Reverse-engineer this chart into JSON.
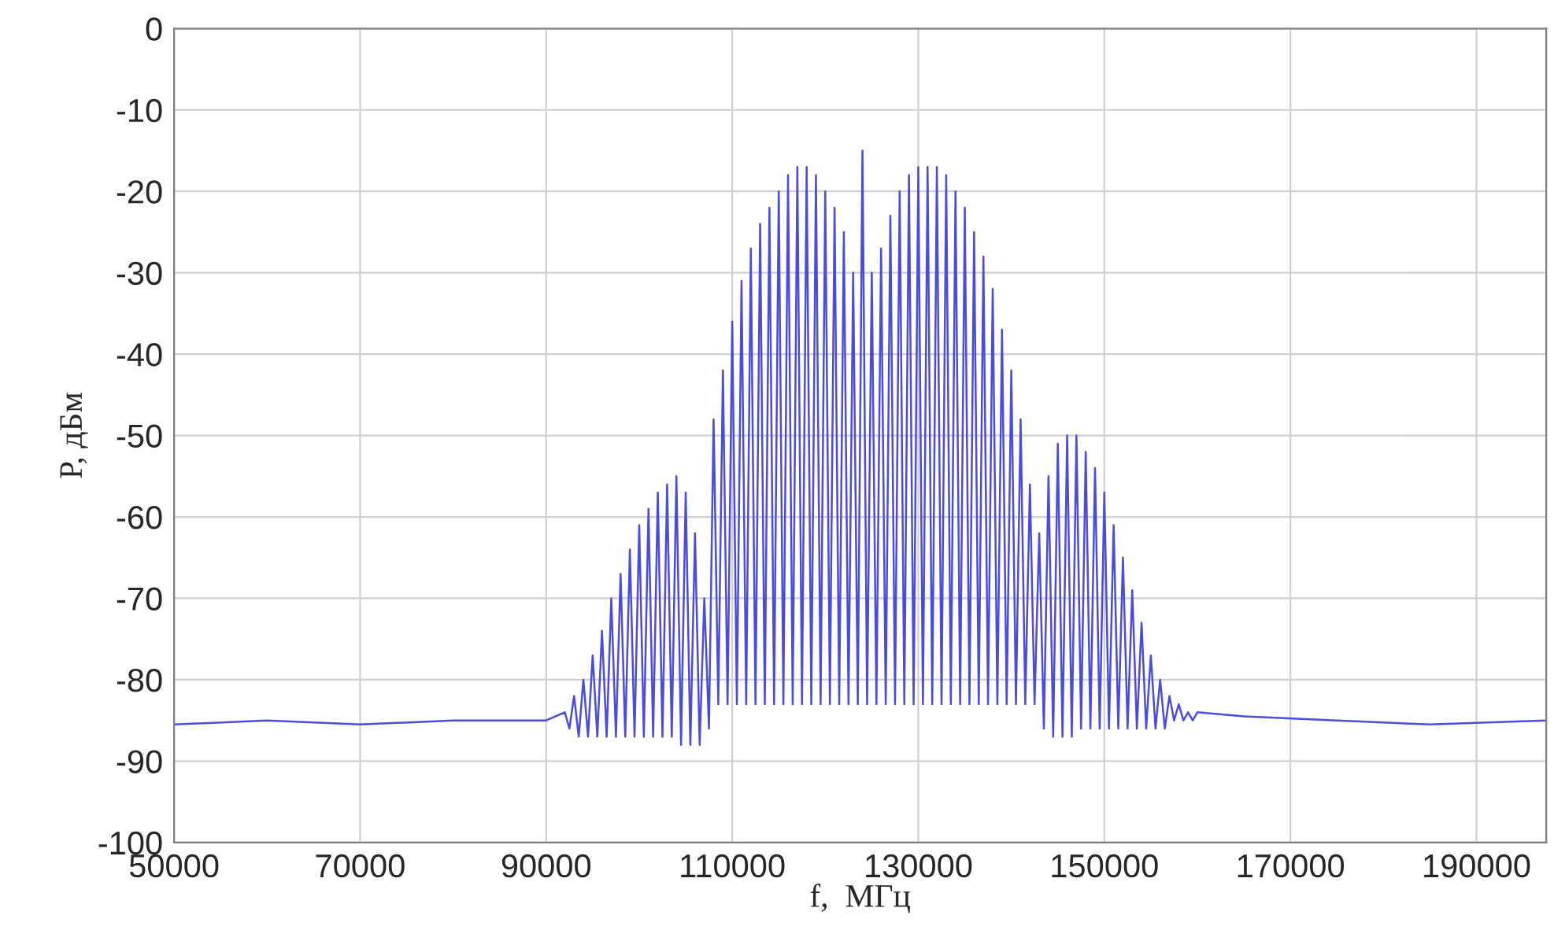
{
  "chart_data": {
    "type": "line",
    "xlabel": "f,  МГц",
    "ylabel": "P, дБм",
    "xlim": [
      50000,
      197500
    ],
    "ylim": [
      -100,
      0
    ],
    "xticks": [
      50000,
      70000,
      90000,
      110000,
      130000,
      150000,
      170000,
      190000
    ],
    "yticks": [
      -100,
      -90,
      -80,
      -70,
      -60,
      -50,
      -40,
      -30,
      -20,
      -10,
      0
    ],
    "grid": true,
    "marker": "none",
    "line_style": "solid",
    "series": [
      {
        "color": "#4b4bdc",
        "x": [
          50000,
          60000,
          70000,
          80000,
          90000,
          92000,
          92500,
          93000,
          93500,
          94000,
          94500,
          95000,
          95500,
          96000,
          96500,
          97000,
          97500,
          98000,
          98500,
          99000,
          99500,
          100000,
          100500,
          101000,
          101500,
          102000,
          102500,
          103000,
          103500,
          104000,
          104500,
          105000,
          105500,
          106000,
          106500,
          107000,
          107500,
          108000,
          108500,
          109000,
          109500,
          110000,
          110500,
          111000,
          111500,
          112000,
          112500,
          113000,
          113500,
          114000,
          114500,
          115000,
          115500,
          116000,
          116500,
          117000,
          117500,
          118000,
          118500,
          119000,
          119500,
          120000,
          120500,
          121000,
          121500,
          122000,
          122500,
          123000,
          123500,
          124000,
          124500,
          125000,
          125500,
          126000,
          126500,
          127000,
          127500,
          128000,
          128500,
          129000,
          129500,
          130000,
          130500,
          131000,
          131500,
          132000,
          132500,
          133000,
          133500,
          134000,
          134500,
          135000,
          135500,
          136000,
          136500,
          137000,
          137500,
          138000,
          138500,
          139000,
          139500,
          140000,
          140500,
          141000,
          141500,
          142000,
          142500,
          143000,
          143500,
          144000,
          144500,
          145000,
          145500,
          146000,
          146500,
          147000,
          147500,
          148000,
          148500,
          149000,
          149500,
          150000,
          150500,
          151000,
          151500,
          152000,
          152500,
          153000,
          153500,
          154000,
          154500,
          155000,
          155500,
          156000,
          156500,
          157000,
          157500,
          158000,
          158500,
          159000,
          159500,
          160000,
          165000,
          175000,
          185000,
          197500
        ],
        "values": [
          -85.5,
          -85,
          -85.5,
          -85,
          -85,
          -84,
          -86,
          -82,
          -87,
          -80,
          -87,
          -77,
          -87,
          -74,
          -87,
          -70,
          -87,
          -67,
          -87,
          -64,
          -87,
          -61,
          -87,
          -59,
          -87,
          -57,
          -87,
          -56,
          -87,
          -55,
          -88,
          -57,
          -88,
          -62,
          -88,
          -70,
          -86,
          -48,
          -83,
          -42,
          -83,
          -36,
          -83,
          -31,
          -83,
          -27,
          -83,
          -24,
          -83,
          -22,
          -83,
          -20,
          -83,
          -18,
          -83,
          -17,
          -83,
          -17,
          -83,
          -18,
          -83,
          -20,
          -83,
          -22,
          -83,
          -25,
          -83,
          -30,
          -83,
          -15,
          -83,
          -30,
          -83,
          -27,
          -83,
          -23,
          -83,
          -20,
          -83,
          -18,
          -83,
          -17,
          -83,
          -17,
          -83,
          -17,
          -83,
          -18,
          -83,
          -20,
          -83,
          -22,
          -83,
          -25,
          -83,
          -28,
          -83,
          -32,
          -83,
          -37,
          -83,
          -42,
          -83,
          -48,
          -83,
          -56,
          -83,
          -62,
          -86,
          -55,
          -87,
          -51,
          -87,
          -50,
          -87,
          -50,
          -86,
          -52,
          -86,
          -54,
          -86,
          -57,
          -86,
          -61,
          -86,
          -65,
          -86,
          -69,
          -86,
          -73,
          -86,
          -77,
          -86,
          -80,
          -86,
          -82,
          -85,
          -83,
          -85,
          -84,
          -85,
          -84,
          -84.5,
          -85,
          -85.5,
          -85
        ]
      }
    ]
  }
}
